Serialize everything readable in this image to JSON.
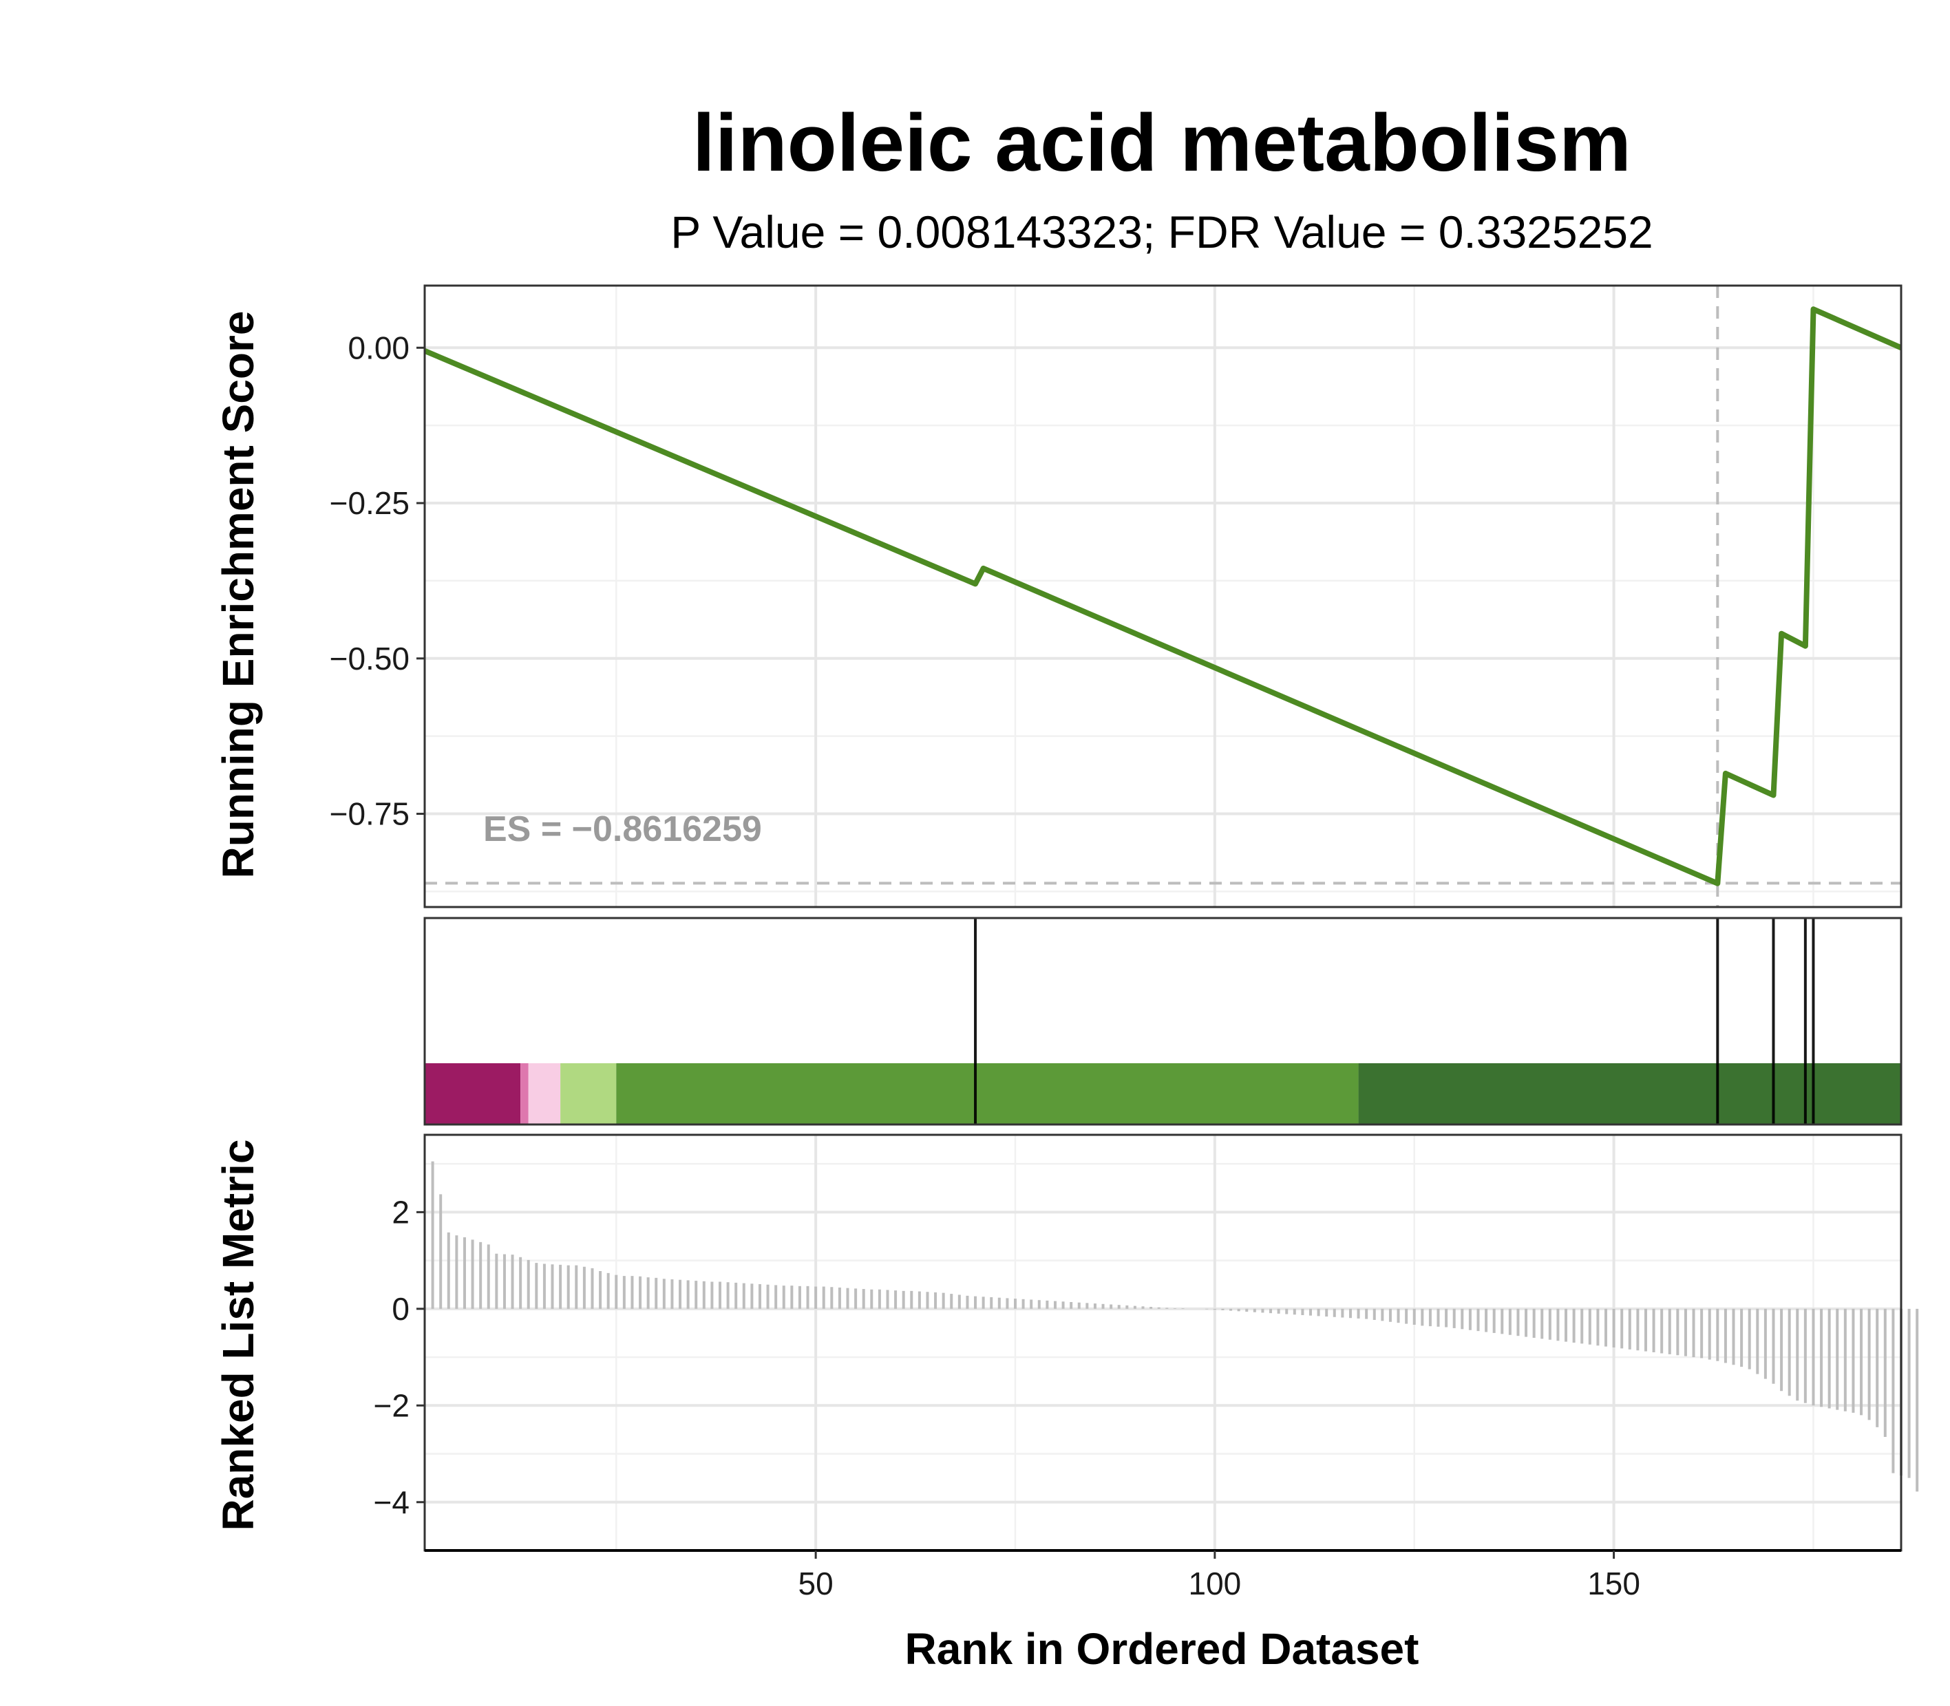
{
  "chart_data": {
    "type": "line",
    "title": "linoleic acid metabolism",
    "subtitle": "P Value = 0.008143323; FDR Value = 0.3325252",
    "xlabel": "Rank in Ordered Dataset",
    "es_label": "ES = −0.8616259",
    "colors": {
      "curve": "#4d8a22",
      "hit": "#000000",
      "metric_bar": "#bdbdbd",
      "reference": "#bdbdbd"
    },
    "x_ticks": [
      "50",
      "100",
      "150"
    ],
    "xlim": [
      1,
      186
    ],
    "enrichment_panel": {
      "ylabel": "Running Enrichment Score",
      "ylim": [
        -0.9,
        0.1
      ],
      "y_ticks": [
        "0.00",
        "−0.25",
        "−0.50",
        "−0.75"
      ],
      "es_value": -0.8616259,
      "es_rank": 163,
      "curve": [
        [
          1,
          -0.005
        ],
        [
          70,
          -0.38
        ],
        [
          71,
          -0.355
        ],
        [
          163,
          -0.862
        ],
        [
          164,
          -0.685
        ],
        [
          170,
          -0.72
        ],
        [
          171,
          -0.46
        ],
        [
          174,
          -0.48
        ],
        [
          175,
          0.062
        ],
        [
          186,
          0.0
        ]
      ]
    },
    "hits": [
      70,
      163,
      170,
      174,
      175
    ],
    "color_band": [
      {
        "start": 1,
        "end": 13,
        "color": "#9c1b63"
      },
      {
        "start": 13,
        "end": 14,
        "color": "#de77ae"
      },
      {
        "start": 14,
        "end": 18,
        "color": "#f8cde4"
      },
      {
        "start": 18,
        "end": 25,
        "color": "#b0d981"
      },
      {
        "start": 25,
        "end": 118,
        "color": "#5c9a38"
      },
      {
        "start": 118,
        "end": 187,
        "color": "#3b7230"
      }
    ],
    "metric_panel": {
      "ylabel": "Ranked List Metric",
      "ylim": [
        -5,
        3.6
      ],
      "y_ticks": [
        "2",
        "0",
        "−2",
        "−4"
      ],
      "values": [
        3.05,
        2.37,
        1.58,
        1.52,
        1.48,
        1.43,
        1.38,
        1.33,
        1.14,
        1.13,
        1.12,
        1.07,
        1.01,
        0.95,
        0.93,
        0.92,
        0.91,
        0.9,
        0.9,
        0.87,
        0.84,
        0.78,
        0.74,
        0.7,
        0.68,
        0.68,
        0.67,
        0.65,
        0.64,
        0.62,
        0.61,
        0.6,
        0.59,
        0.58,
        0.57,
        0.56,
        0.56,
        0.55,
        0.54,
        0.53,
        0.52,
        0.51,
        0.5,
        0.49,
        0.48,
        0.48,
        0.47,
        0.47,
        0.46,
        0.46,
        0.45,
        0.44,
        0.43,
        0.42,
        0.41,
        0.4,
        0.4,
        0.39,
        0.38,
        0.37,
        0.37,
        0.36,
        0.35,
        0.34,
        0.33,
        0.31,
        0.29,
        0.27,
        0.26,
        0.25,
        0.24,
        0.23,
        0.22,
        0.21,
        0.2,
        0.19,
        0.18,
        0.17,
        0.16,
        0.15,
        0.14,
        0.13,
        0.12,
        0.11,
        0.1,
        0.09,
        0.08,
        0.07,
        0.06,
        0.05,
        0.04,
        0.03,
        0.02,
        0.01,
        0.01,
        0.0,
        0.0,
        -0.01,
        -0.02,
        -0.03,
        -0.04,
        -0.05,
        -0.06,
        -0.07,
        -0.08,
        -0.09,
        -0.1,
        -0.11,
        -0.12,
        -0.13,
        -0.14,
        -0.15,
        -0.16,
        -0.17,
        -0.18,
        -0.19,
        -0.2,
        -0.21,
        -0.23,
        -0.25,
        -0.27,
        -0.29,
        -0.31,
        -0.33,
        -0.35,
        -0.36,
        -0.37,
        -0.38,
        -0.4,
        -0.42,
        -0.44,
        -0.46,
        -0.48,
        -0.5,
        -0.52,
        -0.54,
        -0.56,
        -0.58,
        -0.6,
        -0.62,
        -0.64,
        -0.66,
        -0.68,
        -0.7,
        -0.72,
        -0.74,
        -0.76,
        -0.78,
        -0.8,
        -0.82,
        -0.84,
        -0.86,
        -0.88,
        -0.9,
        -0.92,
        -0.94,
        -0.96,
        -0.98,
        -1.0,
        -1.02,
        -1.05,
        -1.08,
        -1.12,
        -1.16,
        -1.2,
        -1.25,
        -1.35,
        -1.45,
        -1.55,
        -1.7,
        -1.8,
        -1.9,
        -1.95,
        -2.0,
        -2.03,
        -2.06,
        -2.09,
        -2.12,
        -2.15,
        -2.2,
        -2.3,
        -2.45,
        -2.65,
        -3.4,
        -3.45,
        -3.5,
        -3.78
      ]
    }
  }
}
